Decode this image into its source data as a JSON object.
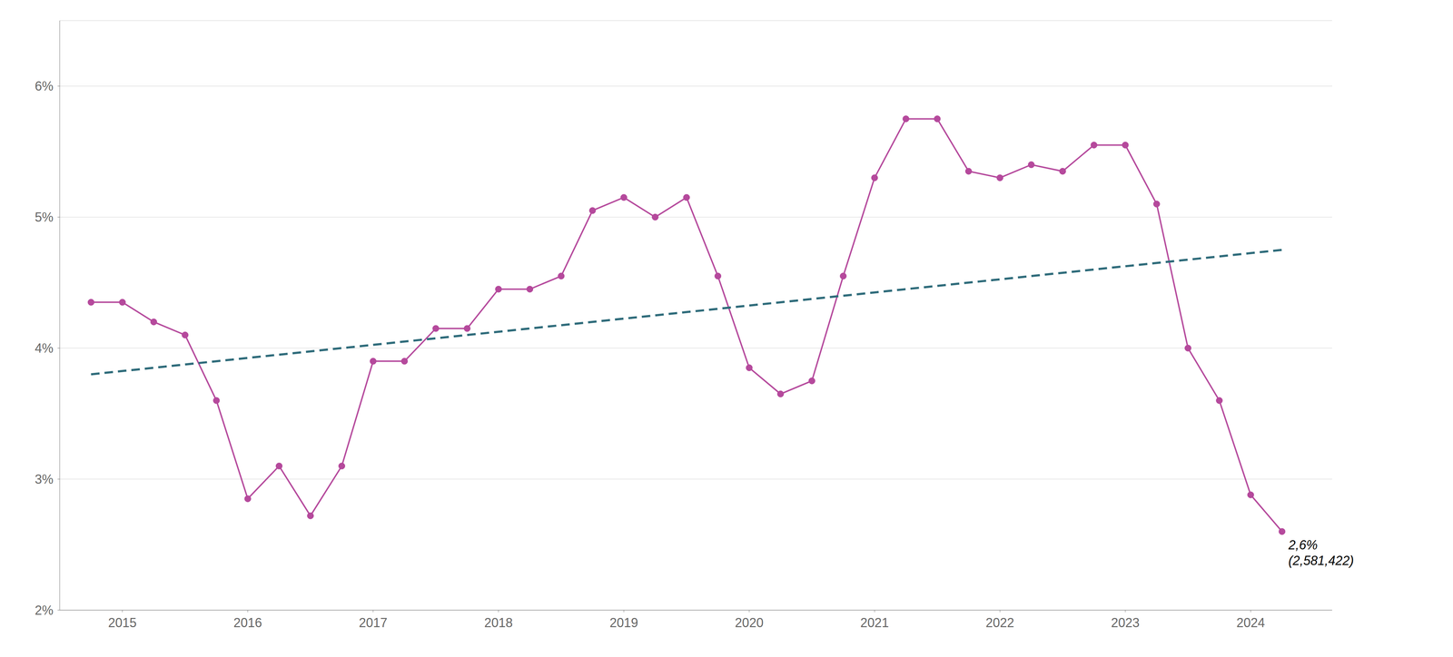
{
  "chart_data": {
    "type": "line",
    "series": [
      {
        "x": [
          2014.75,
          2015.0,
          2015.25,
          2015.5,
          2015.75,
          2016.0,
          2016.25,
          2016.5,
          2016.75,
          2017.0,
          2017.25,
          2017.5,
          2017.75,
          2018.0,
          2018.25,
          2018.5,
          2018.75,
          2019.0,
          2019.25,
          2019.5,
          2019.75,
          2020.0,
          2020.25,
          2020.5,
          2020.75,
          2021.0,
          2021.25,
          2021.5,
          2021.75,
          2022.0,
          2022.25,
          2022.5,
          2022.75,
          2023.0,
          2023.25,
          2023.5,
          2023.75,
          2024.0,
          2024.25
        ],
        "values": [
          4.35,
          4.35,
          4.2,
          4.1,
          3.6,
          2.85,
          3.1,
          2.72,
          3.1,
          3.9,
          3.9,
          4.15,
          4.15,
          4.45,
          4.45,
          4.55,
          5.05,
          5.15,
          5.0,
          5.15,
          4.55,
          3.85,
          3.65,
          3.75,
          4.55,
          5.3,
          5.75,
          5.75,
          5.35,
          5.3,
          5.4,
          5.35,
          5.55,
          5.55,
          5.1,
          4.0,
          3.6,
          2.88,
          2.6
        ],
        "color": "#b5499c",
        "marker": "circle",
        "line_style": "solid"
      },
      {
        "x": [
          2014.75,
          2024.25
        ],
        "values": [
          3.8,
          4.75
        ],
        "color": "#2e6b7a",
        "line_style": "dashed"
      }
    ],
    "xlim": [
      2014.5,
      2024.65
    ],
    "xticks": [
      2015,
      2016,
      2017,
      2018,
      2019,
      2020,
      2021,
      2022,
      2023,
      2024
    ],
    "ylim": [
      2.0,
      6.5
    ],
    "yticks": [
      {
        "value": 2,
        "label": "2%"
      },
      {
        "value": 3,
        "label": "3%"
      },
      {
        "value": 4,
        "label": "4%"
      },
      {
        "value": 5,
        "label": "5%"
      },
      {
        "value": 6,
        "label": "6%"
      }
    ],
    "grid": true,
    "annotations": [
      {
        "text": "2,6%\n(2,581,422)",
        "x": 2024.25,
        "y": 2.6
      }
    ]
  }
}
